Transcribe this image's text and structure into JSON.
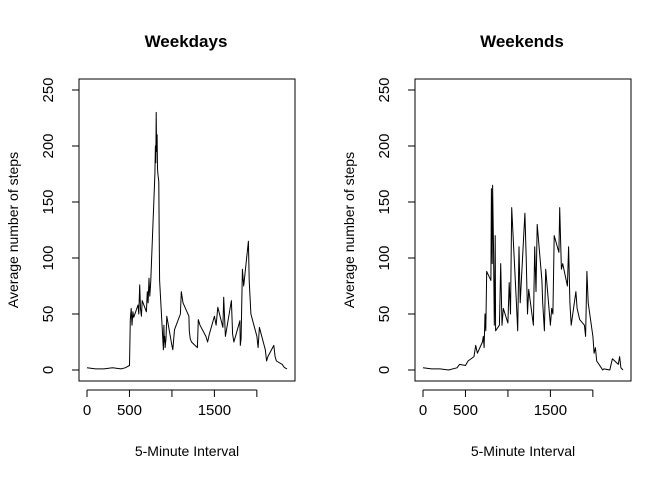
{
  "chart_data": [
    {
      "type": "line",
      "title": "Weekdays",
      "xlabel": "5-Minute Interval",
      "ylabel": "Average number of steps",
      "xlim": [
        0,
        2355
      ],
      "ylim": [
        0,
        250
      ],
      "xticks": [
        0,
        500,
        1500
      ],
      "xticks_unlabeled": [
        1000,
        2000
      ],
      "yticks": [
        0,
        50,
        100,
        150,
        200,
        250
      ],
      "grid": false,
      "legend": "none",
      "line_color": "#000000",
      "x": [
        0,
        100,
        200,
        300,
        400,
        450,
        500,
        510,
        520,
        530,
        540,
        550,
        600,
        610,
        620,
        630,
        640,
        650,
        700,
        710,
        720,
        730,
        740,
        750,
        800,
        805,
        810,
        815,
        820,
        825,
        830,
        835,
        840,
        845,
        850,
        855,
        900,
        905,
        910,
        915,
        920,
        930,
        940,
        1000,
        1010,
        1030,
        1100,
        1110,
        1130,
        1200,
        1205,
        1215,
        1230,
        1300,
        1310,
        1330,
        1400,
        1420,
        1440,
        1500,
        1520,
        1540,
        1600,
        1610,
        1630,
        1700,
        1715,
        1730,
        1800,
        1805,
        1815,
        1830,
        1845,
        1900,
        1910,
        1930,
        2000,
        2015,
        2030,
        2100,
        2115,
        2130,
        2200,
        2215,
        2230,
        2300,
        2315,
        2330,
        2355
      ],
      "y": [
        2,
        1,
        1,
        2,
        1,
        2,
        4,
        45,
        55,
        40,
        52,
        47,
        58,
        50,
        76,
        55,
        48,
        62,
        52,
        70,
        60,
        82,
        66,
        78,
        175,
        200,
        185,
        230,
        195,
        210,
        180,
        175,
        172,
        168,
        120,
        80,
        18,
        40,
        25,
        30,
        20,
        28,
        48,
        22,
        18,
        36,
        50,
        70,
        60,
        48,
        35,
        28,
        25,
        20,
        45,
        40,
        30,
        25,
        32,
        48,
        40,
        56,
        38,
        65,
        30,
        62,
        32,
        25,
        44,
        22,
        28,
        90,
        75,
        115,
        80,
        50,
        30,
        20,
        38,
        18,
        8,
        12,
        22,
        12,
        8,
        5,
        3,
        2,
        1
      ]
    },
    {
      "type": "line",
      "title": "Weekends",
      "xlabel": "5-Minute Interval",
      "ylabel": "Average number of steps",
      "xlim": [
        0,
        2355
      ],
      "ylim": [
        0,
        250
      ],
      "xticks": [
        0,
        500,
        1500
      ],
      "xticks_unlabeled": [
        1000,
        2000
      ],
      "yticks": [
        0,
        50,
        100,
        150,
        200,
        250
      ],
      "grid": false,
      "legend": "none",
      "line_color": "#000000",
      "x": [
        0,
        100,
        200,
        300,
        400,
        430,
        500,
        530,
        600,
        620,
        640,
        700,
        710,
        720,
        730,
        740,
        750,
        800,
        805,
        810,
        815,
        820,
        830,
        840,
        845,
        850,
        855,
        900,
        905,
        915,
        930,
        945,
        1000,
        1015,
        1030,
        1045,
        1100,
        1115,
        1130,
        1145,
        1200,
        1215,
        1230,
        1245,
        1300,
        1315,
        1330,
        1345,
        1400,
        1410,
        1430,
        1445,
        1500,
        1515,
        1530,
        1545,
        1600,
        1610,
        1630,
        1645,
        1700,
        1715,
        1730,
        1745,
        1800,
        1815,
        1830,
        1845,
        1900,
        1915,
        1930,
        1945,
        2000,
        2015,
        2030,
        2045,
        2100,
        2115,
        2130,
        2200,
        2230,
        2300,
        2315,
        2330,
        2355
      ],
      "y": [
        2,
        1,
        1,
        0,
        2,
        5,
        4,
        8,
        12,
        22,
        15,
        25,
        30,
        20,
        50,
        35,
        88,
        80,
        162,
        120,
        95,
        165,
        110,
        40,
        70,
        120,
        35,
        40,
        60,
        95,
        40,
        55,
        42,
        78,
        50,
        145,
        60,
        35,
        110,
        60,
        140,
        100,
        50,
        72,
        40,
        110,
        70,
        130,
        80,
        60,
        35,
        90,
        40,
        55,
        50,
        120,
        105,
        145,
        90,
        95,
        75,
        110,
        60,
        40,
        70,
        55,
        50,
        45,
        40,
        30,
        88,
        60,
        30,
        15,
        20,
        8,
        2,
        0,
        1,
        0,
        10,
        5,
        12,
        2,
        0
      ]
    }
  ]
}
